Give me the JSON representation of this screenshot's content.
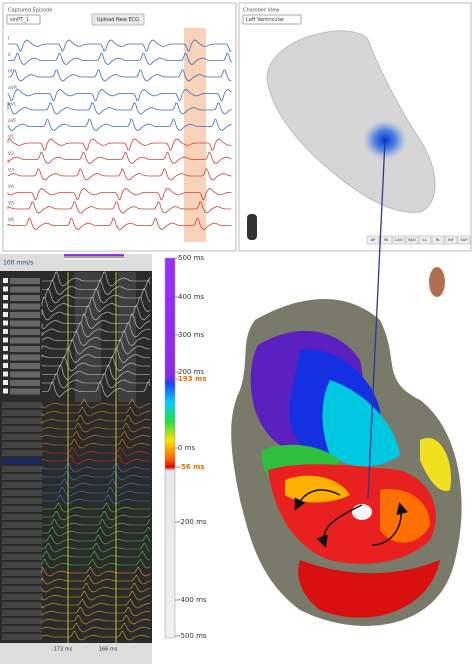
{
  "left_panel": {
    "title": "Captured Episode",
    "dropdown": "sinPT_1",
    "button": "Upload New ECG",
    "leads": [
      "I",
      "II",
      "III",
      "aVR",
      "aVL",
      "aVF",
      "V1",
      "V2",
      "V3",
      "V4",
      "V5",
      "V6"
    ]
  },
  "right_panel": {
    "title": "Chamber View",
    "dropdown": "Left Ventricular",
    "views": [
      "AP",
      "PA",
      "LAO",
      "RAO",
      "LL",
      "RL",
      "INF",
      "SUP"
    ]
  },
  "map_panel": {
    "speed": "100 mm/s",
    "scale_labels": [
      "500 ms",
      "400 ms",
      "300 ms",
      "200 ms",
      "193 ms",
      "0 ms",
      "-56 ms",
      "-200 ms",
      "-400 ms",
      "-500 ms"
    ],
    "time_labels": [
      "-173 ms",
      "166 ms"
    ]
  }
}
